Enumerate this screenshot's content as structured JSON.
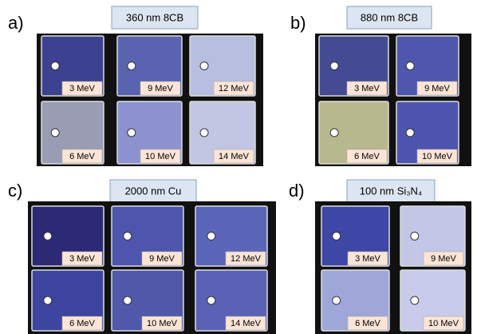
{
  "panels": [
    {
      "letter": "a)",
      "title": "360 nm 8CB",
      "tiles": [
        {
          "label": "3 MeV",
          "color": "#3c4290"
        },
        {
          "label": "9 MeV",
          "color": "#5a63b0"
        },
        {
          "label": "12 MeV",
          "color": "#b8bedf"
        },
        {
          "label": "6 MeV",
          "color": "#9a9cb4"
        },
        {
          "label": "10 MeV",
          "color": "#8d93cf"
        },
        {
          "label": "14 MeV",
          "color": "#c2c6e3"
        }
      ]
    },
    {
      "letter": "b)",
      "title": "880 nm 8CB",
      "tiles": [
        {
          "label": "3 MeV",
          "color": "#454b92"
        },
        {
          "label": "9 MeV",
          "color": "#4f56ad"
        },
        {
          "label": "6 MeV",
          "color": "#b8b88e"
        },
        {
          "label": "10 MeV",
          "color": "#4d54ad"
        }
      ]
    },
    {
      "letter": "c)",
      "title": "2000 nm Cu",
      "tiles": [
        {
          "label": "3 MeV",
          "color": "#2c2a75"
        },
        {
          "label": "9 MeV",
          "color": "#4d55ad"
        },
        {
          "label": "12 MeV",
          "color": "#5c66b8"
        },
        {
          "label": "6 MeV",
          "color": "#3e45a0"
        },
        {
          "label": "10 MeV",
          "color": "#5058aa"
        },
        {
          "label": "14 MeV",
          "color": "#5a62b5"
        }
      ]
    },
    {
      "letter": "d)",
      "title": "100 nm Si₃N₄",
      "tiles": [
        {
          "label": "3 MeV",
          "color": "#3e46a6"
        },
        {
          "label": "9 MeV",
          "color": "#c3c7e6"
        },
        {
          "label": "6 MeV",
          "color": "#9ea7d8"
        },
        {
          "label": "10 MeV",
          "color": "#c8ccea"
        }
      ]
    }
  ]
}
